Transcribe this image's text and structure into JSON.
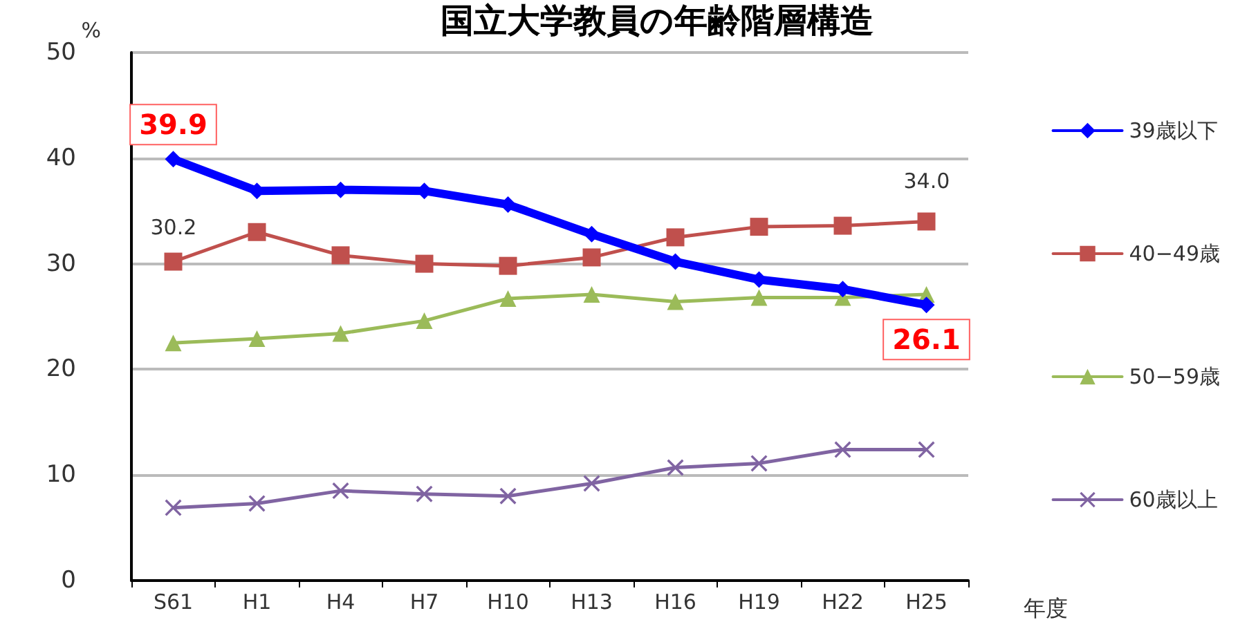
{
  "chart_data": {
    "type": "line",
    "title": "国立大学教員の年齢階層構造",
    "ylabel": "%",
    "xlabel": "年度",
    "categories": [
      "S61",
      "H1",
      "H4",
      "H7",
      "H10",
      "H13",
      "H16",
      "H19",
      "H22",
      "H25"
    ],
    "series": [
      {
        "name": "39歳以下",
        "color": "#0000ff",
        "marker": "diamond",
        "values": [
          39.9,
          36.9,
          37.0,
          36.9,
          35.6,
          32.8,
          30.2,
          28.5,
          27.6,
          26.1
        ],
        "value_labels": [
          "39.9",
          null,
          null,
          null,
          null,
          null,
          null,
          null,
          null,
          "26.1"
        ]
      },
      {
        "name": "40−49歳",
        "color": "#c0504d",
        "marker": "square",
        "values": [
          30.2,
          33.0,
          30.8,
          30.0,
          29.8,
          30.6,
          32.5,
          33.5,
          33.6,
          34.0
        ],
        "value_labels": [
          "30.2",
          null,
          null,
          null,
          null,
          null,
          null,
          null,
          null,
          "34.0"
        ]
      },
      {
        "name": "50−59歳",
        "color": "#9bbb59",
        "marker": "triangle",
        "values": [
          22.5,
          22.9,
          23.4,
          24.6,
          26.7,
          27.1,
          26.4,
          26.8,
          26.8,
          27.1
        ]
      },
      {
        "name": "60歳以上",
        "color": "#8064a2",
        "marker": "cross",
        "values": [
          6.9,
          7.3,
          8.5,
          8.2,
          8.0,
          9.2,
          10.7,
          11.1,
          12.4,
          12.4
        ]
      }
    ],
    "ylim": [
      0,
      50
    ],
    "yticks": [
      0,
      10,
      20,
      30,
      40,
      50
    ],
    "grid": "y",
    "legend": "right"
  }
}
